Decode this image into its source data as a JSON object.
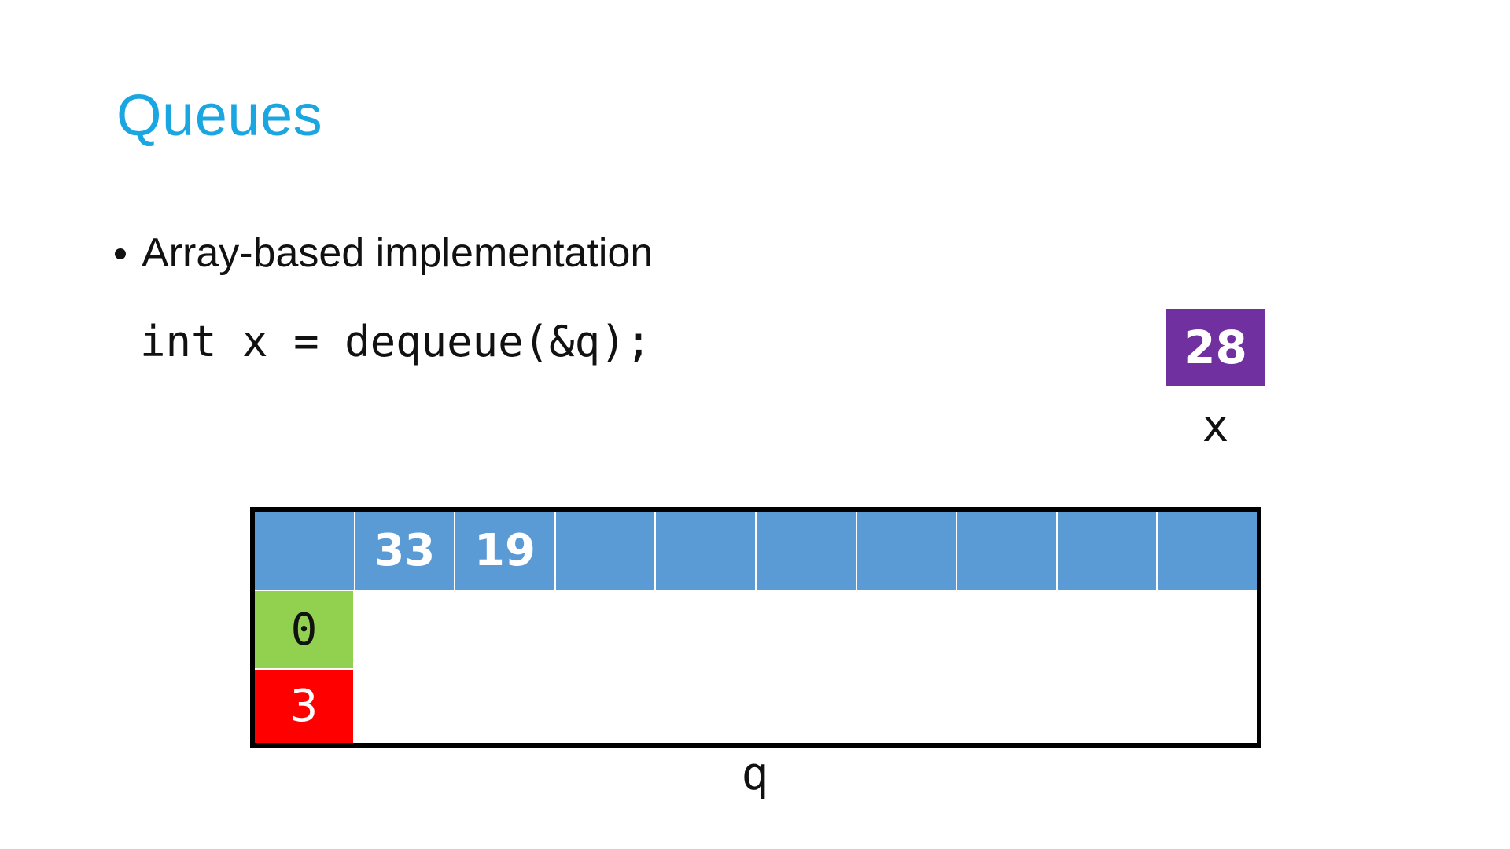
{
  "slide": {
    "title": "Queues",
    "bullet": "Array-based implementation",
    "code": "int x = dequeue(&q);"
  },
  "variable_x": {
    "value": "28",
    "label": "x",
    "color": "#7030a0"
  },
  "queue_q": {
    "label": "q",
    "array": [
      "",
      "33",
      "19",
      "",
      "",
      "",
      "",
      "",
      "",
      ""
    ],
    "front": "0",
    "back": "3",
    "array_color": "#5b9bd5",
    "front_color": "#92d050",
    "back_color": "#ff0000"
  },
  "colors": {
    "title": "#1aa6e0"
  }
}
